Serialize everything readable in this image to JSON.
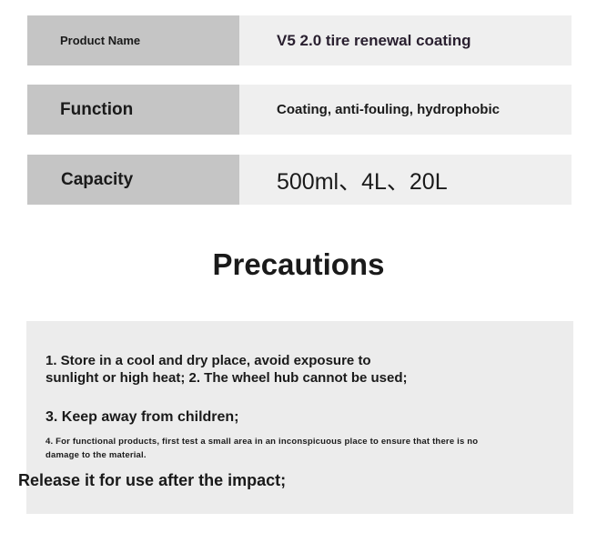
{
  "spec_table": [
    {
      "label": "Product Name",
      "value": "V5 2.0 tire renewal coating"
    },
    {
      "label": "Function",
      "value": "Coating, anti-fouling, hydrophobic"
    },
    {
      "label": "Capacity",
      "value": "500ml、4L、20L"
    }
  ],
  "precautions": {
    "title": "Precautions",
    "line1a": "1. Store in a cool and dry place, avoid exposure to",
    "line1b": "sunlight or high heat; 2. The wheel hub cannot be used;",
    "line3": "3. Keep away from children;",
    "line4a": "4. For functional products, first test a small area in an inconspicuous place to ensure that there is no",
    "line4b": "damage to the material.",
    "release": "Release it for use after the impact;"
  }
}
